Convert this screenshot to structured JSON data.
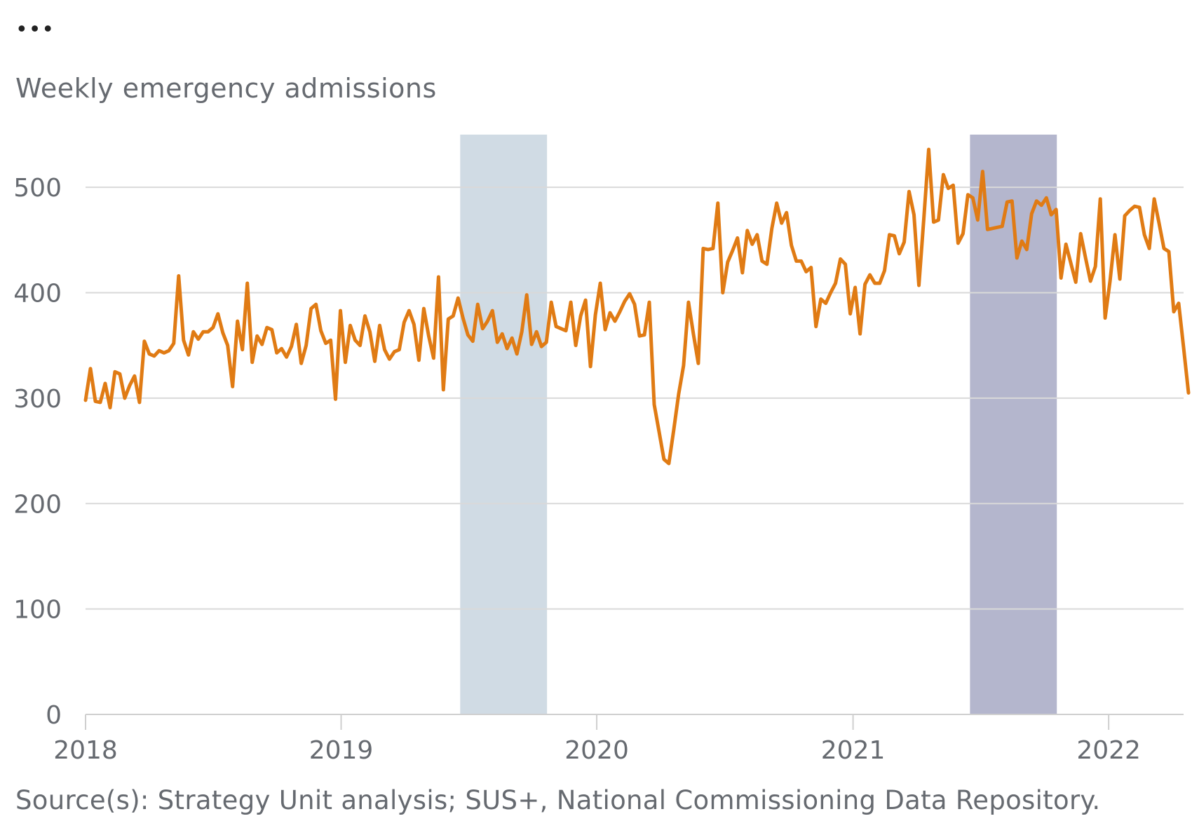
{
  "menu": {
    "label": "•••"
  },
  "chart_data": {
    "type": "line",
    "title": "",
    "ylabel": "Weekly emergency admissions",
    "xlabel": "",
    "source": "Source(s): Strategy Unit analysis; SUS+, National Commissioning Data Repository.",
    "ylim": [
      0,
      550
    ],
    "xlim": [
      "2018-01-01",
      "2022-04-18"
    ],
    "y_ticks": [
      0,
      100,
      200,
      300,
      400,
      500
    ],
    "x_ticks": [
      {
        "label": "2018",
        "date": "2018-01-01"
      },
      {
        "label": "2019",
        "date": "2019-01-01"
      },
      {
        "label": "2020",
        "date": "2020-01-01"
      },
      {
        "label": "2021",
        "date": "2021-01-01"
      },
      {
        "label": "2022",
        "date": "2022-01-01"
      }
    ],
    "grid": "horizontal",
    "series_color": "#e07b14",
    "shaded_periods": [
      {
        "start": "2019-06-20",
        "end": "2019-10-22",
        "color": "#d0dbe4"
      },
      {
        "start": "2021-06-17",
        "end": "2021-10-19",
        "color": "#b4b6cd"
      }
    ],
    "series": [
      {
        "start_date": "2018-01-01",
        "interval_days": 7,
        "values": [
          298,
          328,
          297,
          296,
          314,
          291,
          325,
          323,
          300,
          312,
          321,
          296,
          354,
          342,
          340,
          345,
          343,
          345,
          352,
          416,
          355,
          341,
          363,
          356,
          363,
          363,
          367,
          380,
          362,
          350,
          311,
          373,
          346,
          409,
          334,
          359,
          351,
          367,
          365,
          343,
          347,
          339,
          349,
          370,
          333,
          350,
          385,
          389,
          364,
          352,
          355,
          299,
          383,
          334,
          369,
          355,
          350,
          378,
          363,
          335,
          369,
          346,
          337,
          344,
          346,
          372,
          383,
          370,
          336,
          385,
          359,
          338,
          415,
          308,
          375,
          378,
          395,
          376,
          360,
          354,
          389,
          366,
          373,
          383,
          353,
          361,
          347,
          357,
          342,
          363,
          398,
          351,
          363,
          349,
          353,
          391,
          368,
          366,
          364,
          391,
          350,
          378,
          393,
          330,
          379,
          409,
          365,
          381,
          373,
          382,
          392,
          399,
          389,
          359,
          360,
          391,
          294,
          268,
          242,
          238,
          270,
          304,
          331,
          391,
          361,
          333,
          442,
          441,
          442,
          485,
          400,
          429,
          440,
          452,
          419,
          459,
          446,
          455,
          430,
          427,
          461,
          485,
          466,
          476,
          445,
          430,
          430,
          420,
          424,
          368,
          394,
          390,
          400,
          409,
          432,
          427,
          380,
          405,
          361,
          408,
          417,
          409,
          409,
          421,
          455,
          454,
          437,
          448,
          496,
          474,
          407,
          470,
          536,
          467,
          469,
          512,
          499,
          502,
          447,
          456,
          493,
          490,
          469,
          515,
          460,
          461,
          462,
          463,
          486,
          487,
          433,
          449,
          441,
          475,
          487,
          483,
          490,
          474,
          479,
          414,
          446,
          428,
          410,
          456,
          433,
          411,
          425,
          489,
          376,
          411,
          455,
          413,
          473,
          478,
          482,
          481,
          455,
          442,
          489,
          466,
          442,
          439,
          382,
          390,
          348,
          305
        ]
      }
    ]
  }
}
